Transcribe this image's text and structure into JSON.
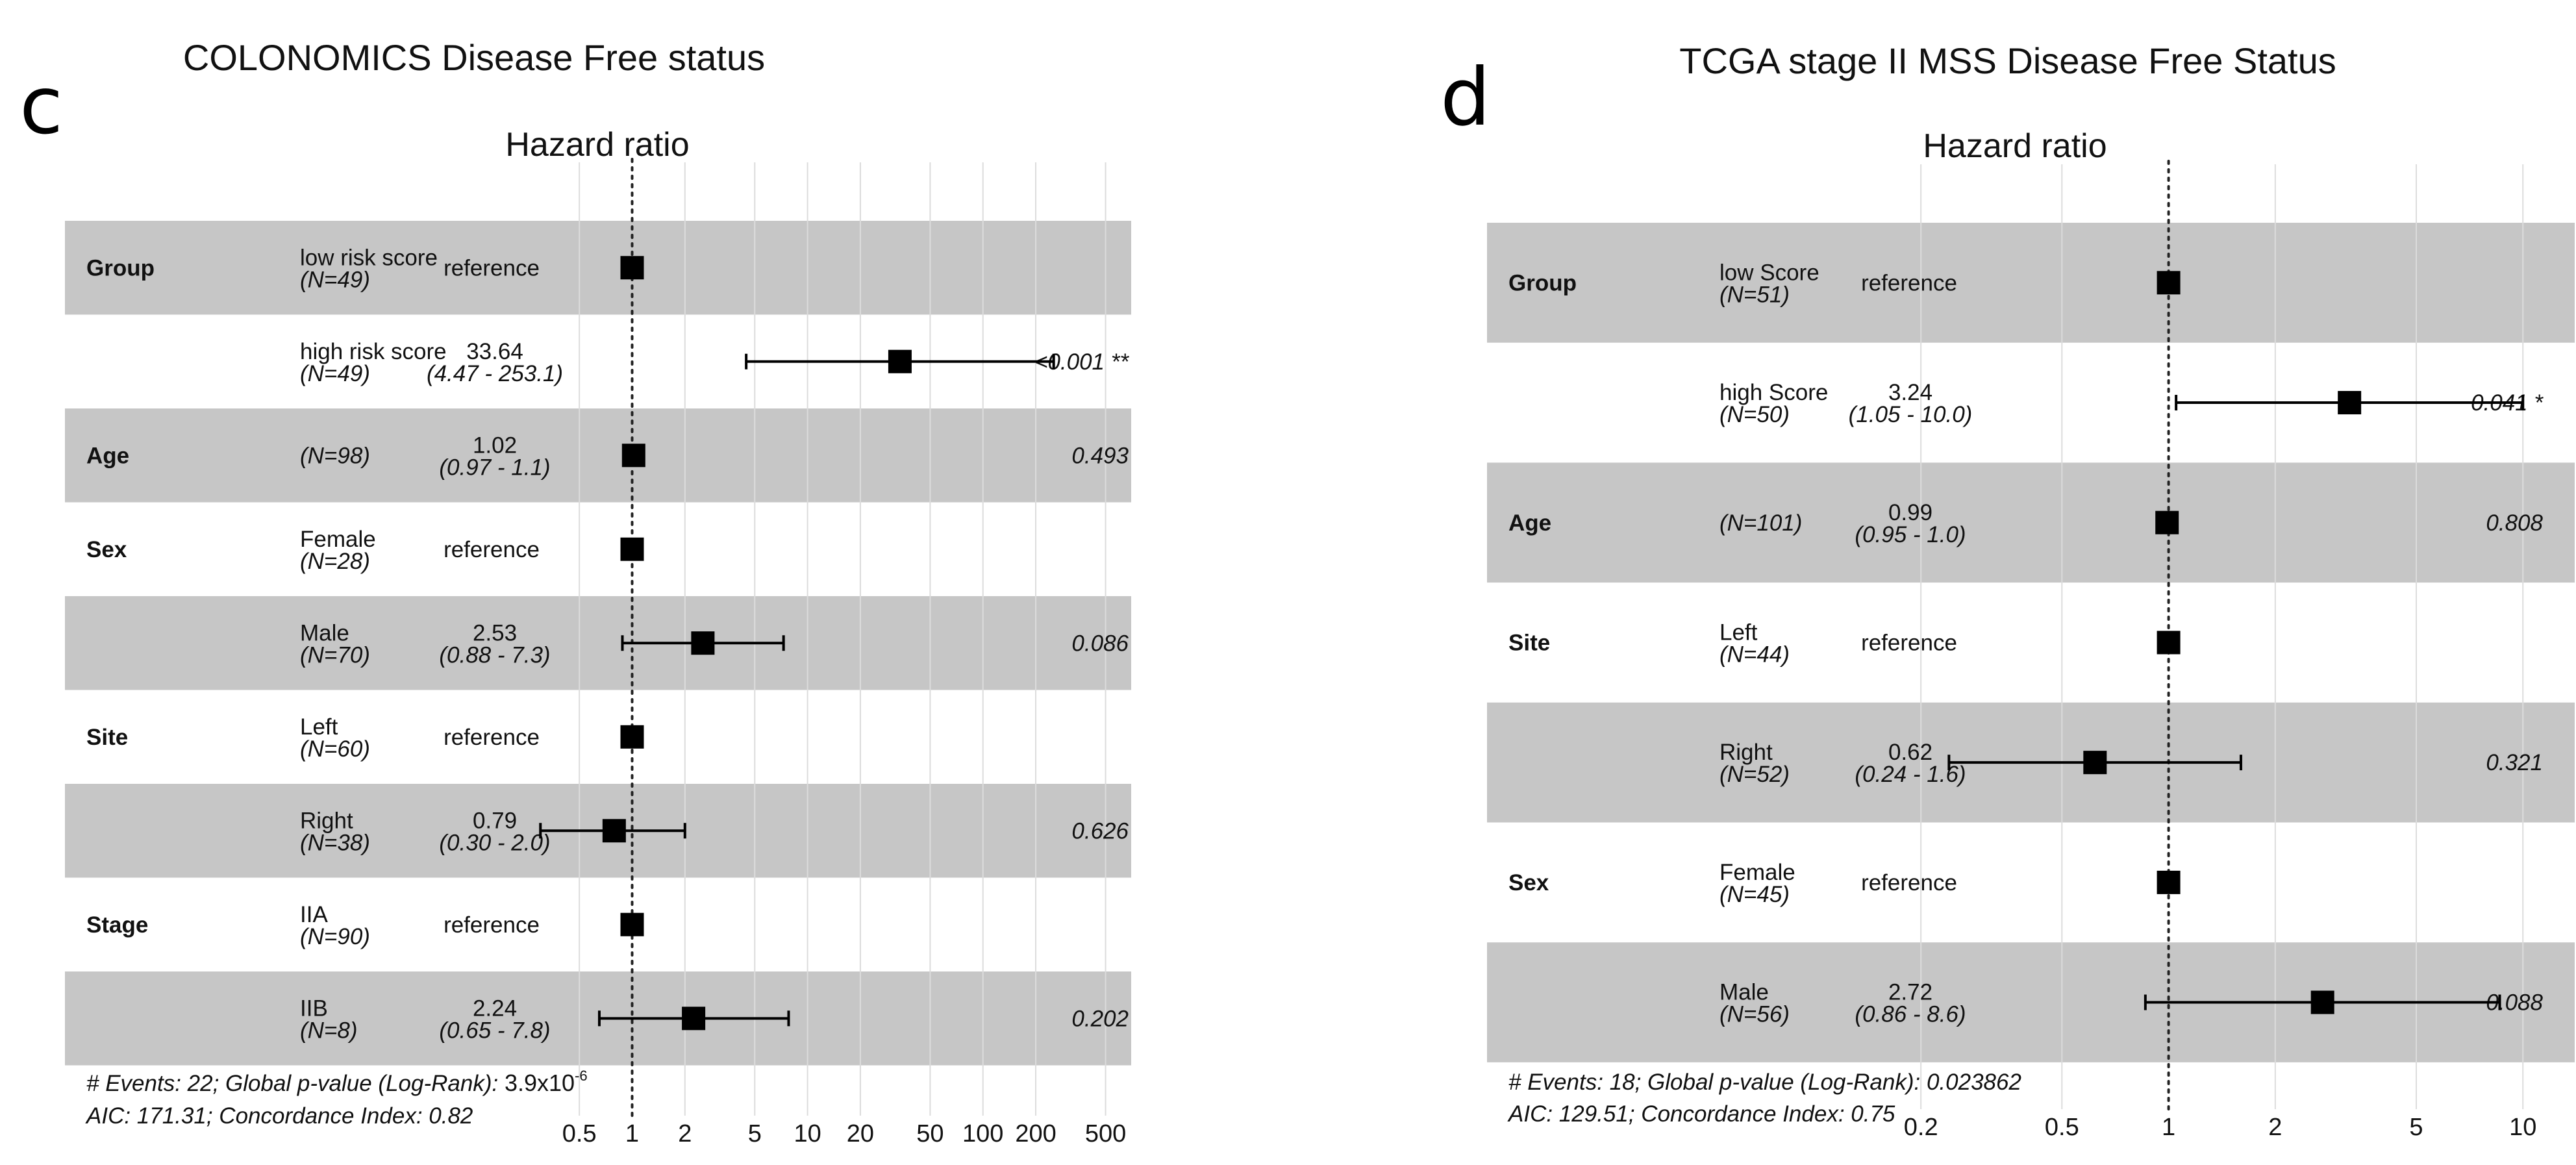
{
  "chart_data": [
    {
      "type": "forest",
      "panel_letter": "c",
      "title": "COLONOMICS Disease Free status",
      "subtitle": "Hazard ratio",
      "x_scale": "log",
      "xlim": [
        0.4,
        700
      ],
      "x_ticks": [
        {
          "value": 0.5,
          "label": "0.5"
        },
        {
          "value": 1,
          "label": "1"
        },
        {
          "value": 2,
          "label": "2"
        },
        {
          "value": 5,
          "label": "5"
        },
        {
          "value": 10,
          "label": "10"
        },
        {
          "value": 20,
          "label": "20"
        },
        {
          "value": 50,
          "label": "50"
        },
        {
          "value": 100,
          "label": "100"
        },
        {
          "value": 200,
          "label": "200"
        },
        {
          "value": 500,
          "label": "500"
        }
      ],
      "reference_line": 1,
      "rows": [
        {
          "variable": "Group",
          "level": "low risk score",
          "n": "(N=49)",
          "hr_text": "reference",
          "ci_text": "",
          "hr": 1,
          "ci": null,
          "p": "",
          "shaded": true
        },
        {
          "variable": "",
          "level": "high risk score",
          "n": "(N=49)",
          "hr_text": "33.64",
          "ci_text": "(4.47 - 253.1)",
          "hr": 33.64,
          "ci": [
            4.47,
            253.1
          ],
          "p": "<0.001 **",
          "shaded": false
        },
        {
          "variable": "Age",
          "level": "",
          "n": "(N=98)",
          "hr_text": "1.02",
          "ci_text": "(0.97 -  1.1)",
          "hr": 1.02,
          "ci": [
            0.97,
            1.1
          ],
          "p": "0.493",
          "shaded": true
        },
        {
          "variable": "Sex",
          "level": "Female",
          "n": "(N=28)",
          "hr_text": "reference",
          "ci_text": "",
          "hr": 1,
          "ci": null,
          "p": "",
          "shaded": false
        },
        {
          "variable": "",
          "level": "Male",
          "n": "(N=70)",
          "hr_text": "2.53",
          "ci_text": "(0.88 -  7.3)",
          "hr": 2.53,
          "ci": [
            0.88,
            7.3
          ],
          "p": "0.086",
          "shaded": true
        },
        {
          "variable": "Site",
          "level": "Left",
          "n": "(N=60)",
          "hr_text": "reference",
          "ci_text": "",
          "hr": 1,
          "ci": null,
          "p": "",
          "shaded": false
        },
        {
          "variable": "",
          "level": "Right",
          "n": "(N=38)",
          "hr_text": "0.79",
          "ci_text": "(0.30 -  2.0)",
          "hr": 0.79,
          "ci": [
            0.3,
            2.0
          ],
          "p": "0.626",
          "shaded": true
        },
        {
          "variable": "Stage",
          "level": "IIA",
          "n": "(N=90)",
          "hr_text": "reference",
          "ci_text": "",
          "hr": 1,
          "ci": null,
          "p": "",
          "shaded": false
        },
        {
          "variable": "",
          "level": "IIB",
          "n": "(N=8)",
          "hr_text": "2.24",
          "ci_text": "(0.65 -  7.8)",
          "hr": 2.24,
          "ci": [
            0.65,
            7.8
          ],
          "p": "0.202",
          "shaded": true
        }
      ],
      "footer_events": "# Events: 22; Global p-value (Log-Rank): ",
      "footer_pvalue": "3.9x10",
      "footer_pvalue_exp": "-6",
      "footer_aic": "AIC: 171.31; Concordance Index: 0.82"
    },
    {
      "type": "forest",
      "panel_letter": "d",
      "title": "TCGA stage II MSS Disease Free Status",
      "subtitle": "Hazard ratio",
      "x_scale": "log",
      "xlim": [
        0.15,
        14
      ],
      "x_ticks": [
        {
          "value": 0.2,
          "label": "0.2"
        },
        {
          "value": 0.5,
          "label": "0.5"
        },
        {
          "value": 1,
          "label": "1"
        },
        {
          "value": 2,
          "label": "2"
        },
        {
          "value": 5,
          "label": "5"
        },
        {
          "value": 10,
          "label": "10"
        }
      ],
      "reference_line": 1,
      "rows": [
        {
          "variable": "Group",
          "level": "low Score",
          "n": "(N=51)",
          "hr_text": "reference",
          "ci_text": "",
          "hr": 1,
          "ci": null,
          "p": "",
          "shaded": true
        },
        {
          "variable": "",
          "level": "high Score",
          "n": "(N=50)",
          "hr_text": "3.24",
          "ci_text": "(1.05 - 10.0)",
          "hr": 3.24,
          "ci": [
            1.05,
            10.0
          ],
          "p": "0.041 *",
          "shaded": false
        },
        {
          "variable": "Age",
          "level": "",
          "n": "(N=101)",
          "hr_text": "0.99",
          "ci_text": "(0.95 -  1.0)",
          "hr": 0.99,
          "ci": [
            0.95,
            1.0
          ],
          "p": "0.808",
          "shaded": true
        },
        {
          "variable": "Site",
          "level": "Left",
          "n": "(N=44)",
          "hr_text": "reference",
          "ci_text": "",
          "hr": 1,
          "ci": null,
          "p": "",
          "shaded": false
        },
        {
          "variable": "",
          "level": "Right",
          "n": "(N=52)",
          "hr_text": "0.62",
          "ci_text": "(0.24 -  1.6)",
          "hr": 0.62,
          "ci": [
            0.24,
            1.6
          ],
          "p": "0.321",
          "shaded": true
        },
        {
          "variable": "Sex",
          "level": "Female",
          "n": "(N=45)",
          "hr_text": "reference",
          "ci_text": "",
          "hr": 1,
          "ci": null,
          "p": "",
          "shaded": false
        },
        {
          "variable": "",
          "level": "Male",
          "n": "(N=56)",
          "hr_text": "2.72",
          "ci_text": "(0.86 -  8.6)",
          "hr": 2.72,
          "ci": [
            0.86,
            8.6
          ],
          "p": "0.088",
          "shaded": true
        }
      ],
      "footer_events": "# Events: 18; Global p-value (Log-Rank): 0.023862",
      "footer_pvalue": "",
      "footer_pvalue_exp": "",
      "footer_aic": "AIC: 129.51; Concordance Index: 0.75"
    }
  ],
  "colors": {
    "shade": "#c6c6c6",
    "grid": "#dcdcdc",
    "marker": "#000000",
    "text": "#111111"
  }
}
